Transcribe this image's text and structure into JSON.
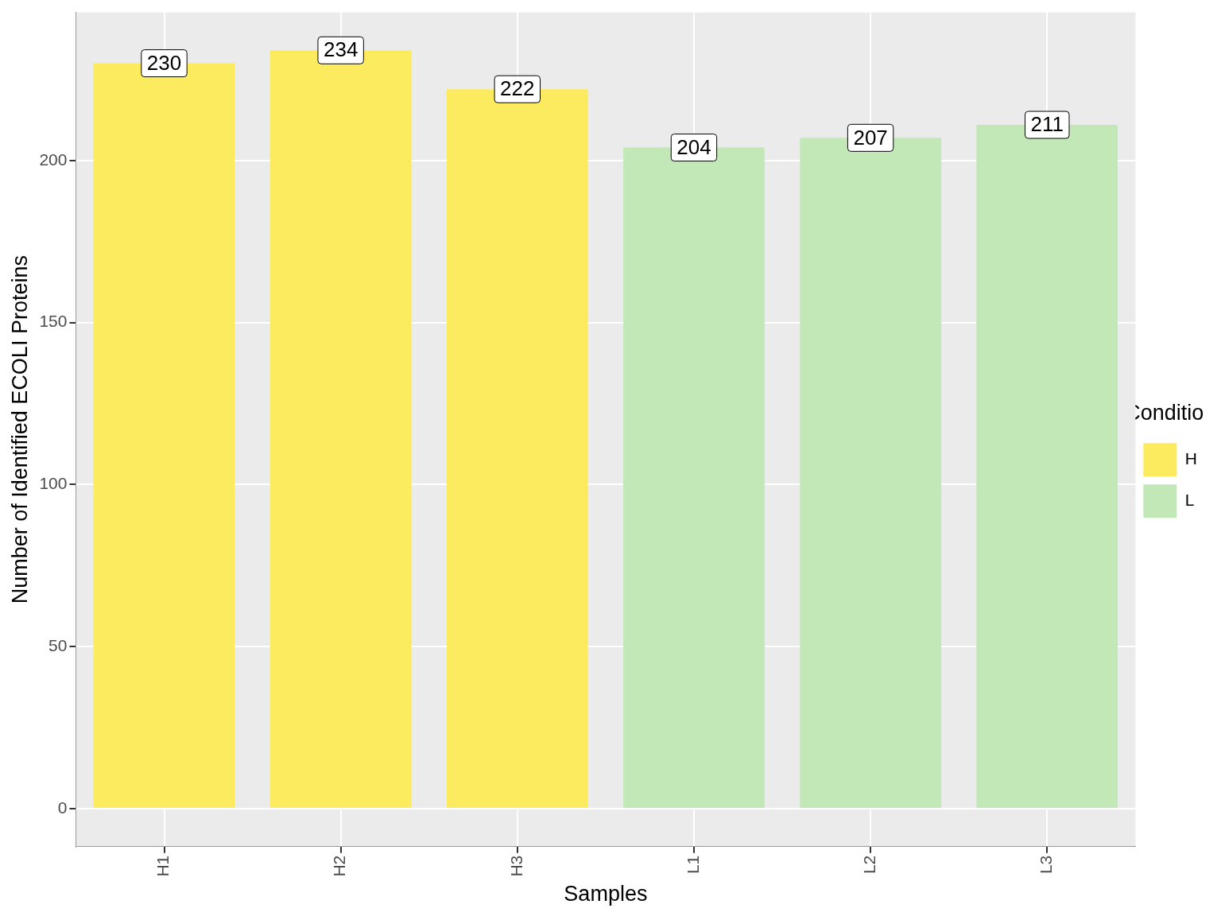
{
  "chart_data": {
    "type": "bar",
    "x_label": "Samples",
    "y_label": "Number of Identified ECOLI Proteins",
    "categories": [
      "H1",
      "H2",
      "H3",
      "L1",
      "L2",
      "L3"
    ],
    "series": [
      {
        "name": "H",
        "color": "#FDEB5F",
        "values": [
          230,
          234,
          222,
          null,
          null,
          null
        ]
      },
      {
        "name": "L",
        "color": "#C3E8B8",
        "values": [
          null,
          null,
          null,
          204,
          207,
          211
        ]
      }
    ],
    "stacked": true,
    "data_labels": true,
    "legend": "right",
    "legend_title": "Condition",
    "ylim": [
      -11.7,
      245.7
    ],
    "yticks": [
      0,
      50,
      100,
      150,
      200
    ],
    "grid": true
  }
}
